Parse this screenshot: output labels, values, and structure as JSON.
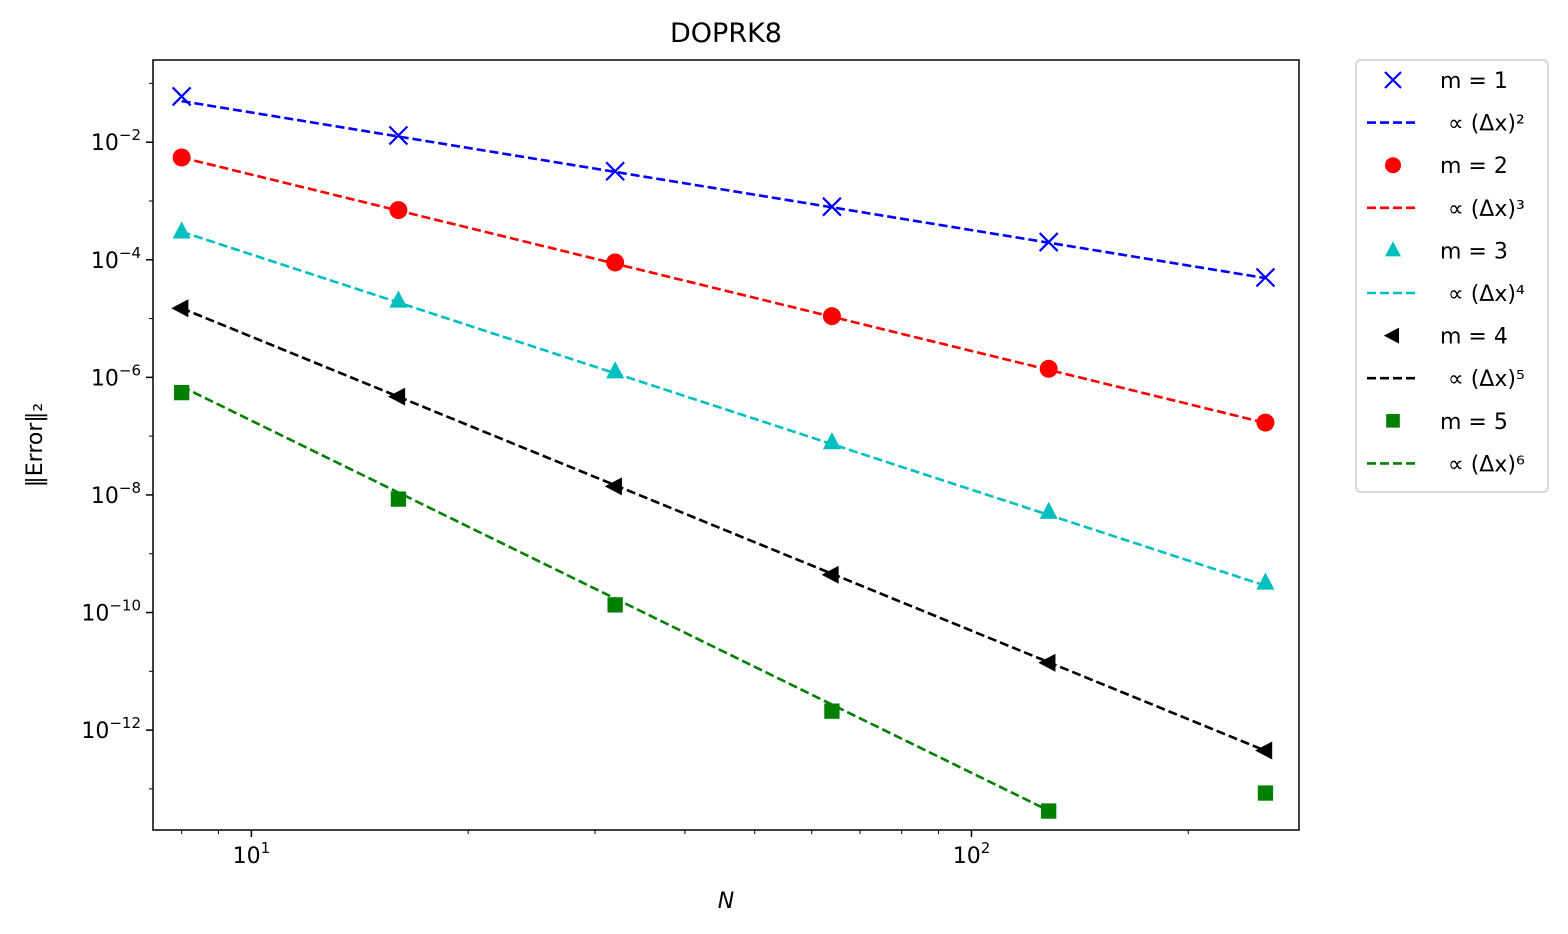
{
  "chart_data": {
    "type": "scatter",
    "title": "DOPRK8",
    "xlabel": "N",
    "ylabel": "‖Error‖₂",
    "xscale": "log",
    "yscale": "log",
    "xlim": [
      7.3,
      285
    ],
    "ylim": [
      2e-14,
      0.25
    ],
    "grid": false,
    "legend_position": "outside-right-top",
    "x_ticks": [
      {
        "value": 10,
        "base": "10",
        "exp": "1"
      },
      {
        "value": 100,
        "base": "10",
        "exp": "2"
      }
    ],
    "y_ticks": [
      {
        "value": 0.01,
        "base": "10",
        "exp": "−2"
      },
      {
        "value": 0.0001,
        "base": "10",
        "exp": "−4"
      },
      {
        "value": 1e-06,
        "base": "10",
        "exp": "−6"
      },
      {
        "value": 1e-08,
        "base": "10",
        "exp": "−8"
      },
      {
        "value": 1e-10,
        "base": "10",
        "exp": "−10"
      },
      {
        "value": 1e-12,
        "base": "10",
        "exp": "−12"
      }
    ],
    "series": [
      {
        "name": "m = 1",
        "marker": "x",
        "color": "#0000ff",
        "x": [
          8,
          16,
          32,
          64,
          128,
          256
        ],
        "y": [
          0.06,
          0.013,
          0.0032,
          0.0008,
          0.0002,
          5e-05
        ]
      },
      {
        "name": "∝ (Δx)²",
        "kind": "fit",
        "color": "#0000ff",
        "x": [
          8,
          256
        ],
        "y": [
          0.05,
          4.88e-05
        ]
      },
      {
        "name": "m = 2",
        "marker": "circle",
        "color": "#ff0000",
        "x": [
          8,
          16,
          32,
          64,
          128,
          256
        ],
        "y": [
          0.0055,
          0.0007,
          9e-05,
          1.1e-05,
          1.4e-06,
          1.7e-07
        ]
      },
      {
        "name": "∝ (Δx)³",
        "kind": "fit",
        "color": "#ff0000",
        "x": [
          8,
          256
        ],
        "y": [
          0.0055,
          1.68e-07
        ]
      },
      {
        "name": "m = 3",
        "marker": "triangle-up",
        "color": "#00bfbf",
        "x": [
          8,
          16,
          32,
          64,
          128,
          256
        ],
        "y": [
          0.0003,
          2e-05,
          1.25e-06,
          7.8e-08,
          5.1e-09,
          3.2e-10
        ]
      },
      {
        "name": "∝ (Δx)⁴",
        "kind": "fit",
        "color": "#00bfbf",
        "x": [
          8,
          256
        ],
        "y": [
          0.0003,
          2.86e-10
        ]
      },
      {
        "name": "m = 4",
        "marker": "triangle-left",
        "color": "#000000",
        "x": [
          8,
          16,
          32,
          64,
          128,
          256
        ],
        "y": [
          1.5e-05,
          4.7e-07,
          1.4e-08,
          4.4e-10,
          1.4e-11,
          4.5e-13
        ]
      },
      {
        "name": "∝ (Δx)⁵",
        "kind": "fit",
        "color": "#000000",
        "x": [
          8,
          256
        ],
        "y": [
          1.5e-05,
          4.47e-13
        ]
      },
      {
        "name": "m = 5",
        "marker": "square",
        "color": "#008000",
        "x": [
          8,
          16,
          32,
          64,
          128,
          256
        ],
        "y": [
          5.5e-07,
          8.5e-09,
          1.35e-10,
          2.1e-12,
          4.2e-14,
          8.5e-14
        ]
      },
      {
        "name": "∝ (Δx)⁶",
        "kind": "fit",
        "color": "#008000",
        "x": [
          8,
          128
        ],
        "y": [
          7e-07,
          4.27e-14
        ]
      }
    ]
  }
}
